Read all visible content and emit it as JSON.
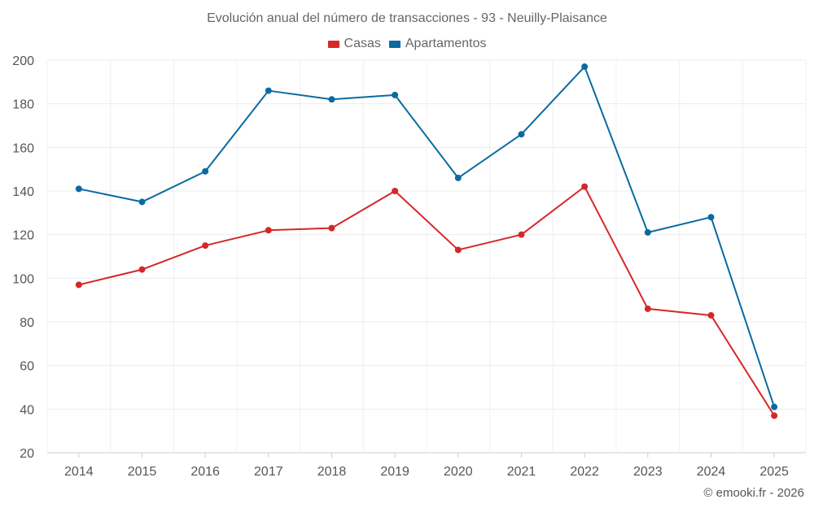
{
  "chart_data": {
    "type": "line",
    "title": "Evolución anual del número de transacciones - 93 - Neuilly-Plaisance",
    "categories": [
      "2014",
      "2015",
      "2016",
      "2017",
      "2018",
      "2019",
      "2020",
      "2021",
      "2022",
      "2023",
      "2024",
      "2025"
    ],
    "series": [
      {
        "name": "Casas",
        "color": "#d62728",
        "values": [
          97,
          104,
          115,
          122,
          123,
          140,
          113,
          120,
          142,
          86,
          83,
          37
        ]
      },
      {
        "name": "Apartamentos",
        "color": "#0a6aa1",
        "values": [
          141,
          135,
          149,
          186,
          182,
          184,
          146,
          166,
          197,
          121,
          128,
          41
        ]
      }
    ],
    "yticks": [
      20,
      40,
      60,
      80,
      100,
      120,
      140,
      160,
      180,
      200
    ],
    "ylim": [
      20,
      200
    ],
    "xlabel": "",
    "ylabel": "",
    "grid": true,
    "legend_position": "top-center"
  },
  "credit": "© emooki.fr - 2026"
}
